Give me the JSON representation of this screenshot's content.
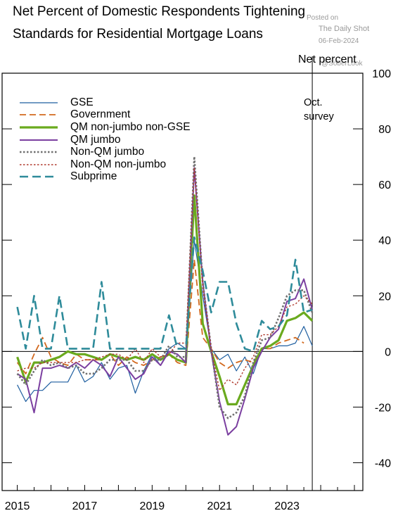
{
  "title_line1": "Net Percent of Domestic Respondents Tightening",
  "title_line2": "Standards for Residential Mortgage Loans",
  "watermark": {
    "posted_on": "Posted on",
    "source": "The Daily Shot",
    "date": "06-Feb-2024",
    "partial": "@SoberLook"
  },
  "chart_data": {
    "type": "line",
    "title": "Net Percent of Domestic Respondents Tightening Standards for Residential Mortgage Loans",
    "ylabel": "Net percent",
    "ylim": [
      -50,
      100
    ],
    "yticks": [
      -40,
      -20,
      0,
      20,
      40,
      60,
      80,
      100
    ],
    "xlim": [
      2014.55,
      2025.25
    ],
    "xticklabels": [
      "2015",
      "2017",
      "2019",
      "2021",
      "2023"
    ],
    "xticks": [
      2015,
      2017,
      2019,
      2021,
      2023
    ],
    "annotation": {
      "text_line1": "Oct.",
      "text_line2": "survey",
      "x": 2023.75
    },
    "x": [
      2015.0,
      2015.25,
      2015.5,
      2015.75,
      2016.0,
      2016.25,
      2016.5,
      2016.75,
      2017.0,
      2017.25,
      2017.5,
      2017.75,
      2018.0,
      2018.25,
      2018.5,
      2018.75,
      2019.0,
      2019.25,
      2019.5,
      2019.75,
      2020.0,
      2020.25,
      2020.5,
      2020.75,
      2021.0,
      2021.25,
      2021.5,
      2021.75,
      2022.0,
      2022.25,
      2022.5,
      2022.75,
      2023.0,
      2023.25,
      2023.5,
      2023.75,
      2024.0
    ],
    "series": [
      {
        "name": "GSE",
        "color": "#1f5fa0",
        "width": 1.2,
        "dash": "",
        "values": [
          -12,
          -18,
          -14,
          -14,
          -11,
          -11,
          -11,
          -5,
          -11,
          -9,
          -4,
          -10,
          -6,
          -5,
          -15,
          -7,
          -1,
          -5,
          1,
          3,
          1,
          40,
          20,
          1,
          -3,
          -1,
          -7,
          -2,
          -8,
          1,
          1,
          2,
          2,
          3,
          9,
          2,
          null
        ]
      },
      {
        "name": "Government",
        "color": "#d2691e",
        "width": 1.8,
        "dash": "9,5",
        "values": [
          -4,
          -8,
          -1,
          5,
          -2,
          -4,
          -5,
          -1,
          -3,
          -3,
          -3,
          -1,
          -5,
          -2,
          -4,
          -5,
          -3,
          -2,
          -1,
          -4,
          -5,
          33,
          5,
          1,
          -4,
          -6,
          -4,
          -3,
          -4,
          1,
          1,
          3,
          4,
          5,
          3,
          null,
          null
        ]
      },
      {
        "name": "QM non-jumbo non-GSE",
        "color": "#6aaa1e",
        "width": 3.2,
        "dash": "",
        "values": [
          -2,
          -11,
          -4,
          -4,
          -3,
          -2,
          0,
          -1,
          -1,
          -2,
          -3,
          -1,
          -2,
          -3,
          -2,
          -3,
          -1,
          -3,
          -1,
          -3,
          -4,
          56,
          10,
          0,
          -9,
          -19,
          -19,
          -12,
          -5,
          1,
          2,
          4,
          11,
          12,
          14,
          11,
          null
        ]
      },
      {
        "name": "QM jumbo",
        "color": "#7b3fa0",
        "width": 2.0,
        "dash": "",
        "values": [
          -8,
          -10,
          -22,
          -6,
          -6,
          -5,
          -6,
          -4,
          -6,
          -3,
          -5,
          -9,
          -2,
          -6,
          -10,
          -8,
          -2,
          -5,
          0,
          -1,
          -4,
          66,
          25,
          0,
          -18,
          -30,
          -27,
          -17,
          -6,
          0,
          5,
          8,
          18,
          19,
          26,
          15,
          null
        ]
      },
      {
        "name": "Non-QM jumbo",
        "color": "#707070",
        "width": 2.6,
        "dash": "2.5,2.5",
        "values": [
          -8,
          -12,
          -7,
          -3,
          -5,
          -4,
          -6,
          -5,
          -8,
          -8,
          -6,
          -3,
          -3,
          -3,
          -7,
          -7,
          -3,
          -3,
          2,
          -2,
          -2,
          70,
          25,
          1,
          -20,
          -24,
          -22,
          -16,
          -4,
          4,
          5,
          12,
          20,
          22,
          22,
          14,
          null
        ]
      },
      {
        "name": "Non-QM non-jumbo",
        "color": "#b03a2e",
        "width": 1.4,
        "dash": "2.5,2.5",
        "values": [
          -7,
          -6,
          -6,
          -4,
          -4,
          -4,
          -4,
          -4,
          -3,
          -3,
          -2,
          -1,
          -1,
          -3,
          1,
          -4,
          1,
          -2,
          -1,
          3,
          3,
          66,
          23,
          1,
          -14,
          -10,
          -12,
          -6,
          -2,
          6,
          6,
          9,
          16,
          17,
          20,
          17,
          null
        ]
      },
      {
        "name": "Subprime",
        "color": "#2e8b9a",
        "width": 2.6,
        "dash": "12,6",
        "values": [
          16,
          1,
          20,
          1,
          1,
          20,
          1,
          1,
          1,
          1,
          25,
          1,
          1,
          1,
          1,
          1,
          1,
          1,
          13,
          1,
          1,
          41,
          29,
          14,
          25,
          25,
          10,
          1,
          0,
          11,
          8,
          9,
          13,
          33,
          14,
          15,
          null
        ]
      }
    ]
  }
}
